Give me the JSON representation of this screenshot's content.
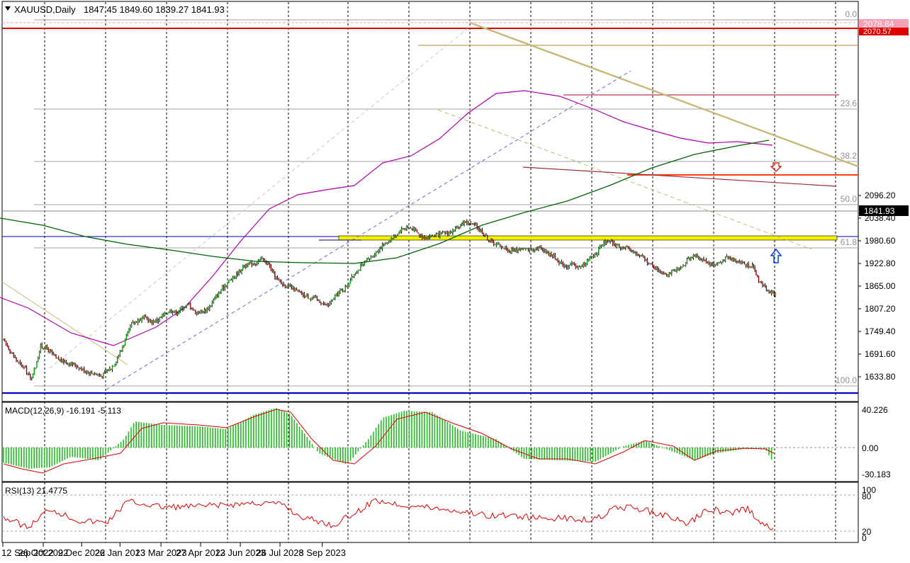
{
  "symbol_header": {
    "symbol": "XAUUSD,Daily",
    "ohlc": "1847.45 1849.60 1839.27 1841.93"
  },
  "price_scale": {
    "ticks": [
      "2096.20",
      "2038.40",
      "1980.60",
      "1922.80",
      "1865.00",
      "1807.20",
      "1749.40",
      "1691.60",
      "1633.80"
    ],
    "current_price": "1841.93",
    "tag_high": "2078.84",
    "tag_level": "2070.57"
  },
  "fibonacci": {
    "levels": [
      "0.0",
      "23.6",
      "38.2",
      "50.0",
      "61.8",
      "100.0"
    ]
  },
  "x_axis": {
    "dates": [
      "12 Sep 2022",
      "26 Oct 2022",
      "9 Dec 2022",
      "26 Jan 2023",
      "13 Mar 2023",
      "27 Apr 2023",
      "12 Jun 2023",
      "26 Jul 2023",
      "8 Sep 2023"
    ]
  },
  "macd": {
    "label": "MACD(12,26,9) -16.191 -5.113",
    "ticks": [
      "40.226",
      "0.00",
      "-30.183"
    ]
  },
  "rsi": {
    "label": "RSI(13) 21.4775",
    "ticks": [
      "100",
      "80",
      "20",
      "0"
    ]
  },
  "colors": {
    "up_candle": "#00aa00",
    "down_candle": "#b00000",
    "ma_short": "#b000b0",
    "ma_long": "#006400",
    "trendline": "#c8b878",
    "resistance": "#e00000",
    "support": "#0000c8",
    "zone": "#f5f000",
    "macd_hist": "#22bb22",
    "macd_signal": "#dd0000",
    "rsi_line": "#dd0000"
  },
  "chart_data": {
    "type": "candlestick",
    "title": "XAUUSD,Daily",
    "ylim": [
      1605,
      2110
    ],
    "dates": [
      "12 Sep 2022",
      "26 Oct 2022",
      "9 Dec 2022",
      "26 Jan 2023",
      "13 Mar 2023",
      "27 Apr 2023",
      "12 Jun 2023",
      "26 Jul 2023",
      "8 Sep 2023"
    ],
    "close_path": [
      [
        0,
        1727
      ],
      [
        3,
        1712
      ],
      [
        8,
        1685
      ],
      [
        13,
        1665
      ],
      [
        17,
        1655
      ],
      [
        21,
        1628
      ],
      [
        25,
        1660
      ],
      [
        29,
        1712
      ],
      [
        33,
        1708
      ],
      [
        37,
        1696
      ],
      [
        41,
        1680
      ],
      [
        46,
        1674
      ],
      [
        52,
        1668
      ],
      [
        58,
        1660
      ],
      [
        63,
        1650
      ],
      [
        67,
        1645
      ],
      [
        72,
        1642
      ],
      [
        76,
        1635
      ],
      [
        80,
        1646
      ],
      [
        84,
        1656
      ],
      [
        88,
        1676
      ],
      [
        92,
        1703
      ],
      [
        96,
        1735
      ],
      [
        100,
        1768
      ],
      [
        105,
        1778
      ],
      [
        110,
        1786
      ],
      [
        115,
        1773
      ],
      [
        120,
        1778
      ],
      [
        125,
        1790
      ],
      [
        130,
        1804
      ],
      [
        135,
        1798
      ],
      [
        140,
        1810
      ],
      [
        145,
        1818
      ],
      [
        150,
        1798
      ],
      [
        155,
        1800
      ],
      [
        160,
        1808
      ],
      [
        165,
        1833
      ],
      [
        170,
        1854
      ],
      [
        175,
        1875
      ],
      [
        180,
        1888
      ],
      [
        185,
        1905
      ],
      [
        188,
        1918
      ],
      [
        192,
        1920
      ],
      [
        197,
        1925
      ],
      [
        202,
        1935
      ],
      [
        207,
        1920
      ],
      [
        212,
        1890
      ],
      [
        217,
        1872
      ],
      [
        222,
        1864
      ],
      [
        227,
        1856
      ],
      [
        232,
        1846
      ],
      [
        237,
        1838
      ],
      [
        242,
        1836
      ],
      [
        247,
        1826
      ],
      [
        252,
        1815
      ],
      [
        255,
        1820
      ],
      [
        259,
        1838
      ],
      [
        263,
        1853
      ],
      [
        267,
        1860
      ],
      [
        270,
        1876
      ],
      [
        275,
        1900
      ],
      [
        280,
        1917
      ],
      [
        285,
        1932
      ],
      [
        290,
        1948
      ],
      [
        295,
        1965
      ],
      [
        300,
        1978
      ],
      [
        305,
        1990
      ],
      [
        310,
        2008
      ],
      [
        315,
        2015
      ],
      [
        320,
        2012
      ],
      [
        325,
        1995
      ],
      [
        330,
        1990
      ],
      [
        335,
        1993
      ],
      [
        340,
        1995
      ],
      [
        345,
        2000
      ],
      [
        350,
        2003
      ],
      [
        355,
        2012
      ],
      [
        360,
        2030
      ],
      [
        365,
        2024
      ],
      [
        370,
        2016
      ],
      [
        375,
        2000
      ],
      [
        380,
        1980
      ],
      [
        385,
        1972
      ],
      [
        390,
        1965
      ],
      [
        395,
        1955
      ],
      [
        400,
        1957
      ],
      [
        405,
        1960
      ],
      [
        410,
        1958
      ],
      [
        415,
        1962
      ],
      [
        420,
        1962
      ],
      [
        425,
        1951
      ],
      [
        430,
        1940
      ],
      [
        435,
        1925
      ],
      [
        440,
        1915
      ],
      [
        445,
        1920
      ],
      [
        450,
        1912
      ],
      [
        455,
        1925
      ],
      [
        460,
        1940
      ],
      [
        465,
        1957
      ],
      [
        470,
        1978
      ],
      [
        475,
        1975
      ],
      [
        480,
        1967
      ],
      [
        485,
        1962
      ],
      [
        490,
        1960
      ],
      [
        495,
        1945
      ],
      [
        500,
        1937
      ],
      [
        505,
        1922
      ],
      [
        510,
        1910
      ],
      [
        515,
        1900
      ],
      [
        520,
        1897
      ],
      [
        525,
        1904
      ],
      [
        530,
        1912
      ],
      [
        535,
        1937
      ],
      [
        540,
        1942
      ],
      [
        545,
        1935
      ],
      [
        550,
        1925
      ],
      [
        555,
        1920
      ],
      [
        560,
        1925
      ],
      [
        565,
        1938
      ],
      [
        570,
        1935
      ],
      [
        575,
        1928
      ],
      [
        580,
        1920
      ],
      [
        585,
        1917
      ],
      [
        590,
        1880
      ],
      [
        595,
        1862
      ],
      [
        600,
        1848
      ],
      [
        603,
        1842
      ]
    ]
  }
}
